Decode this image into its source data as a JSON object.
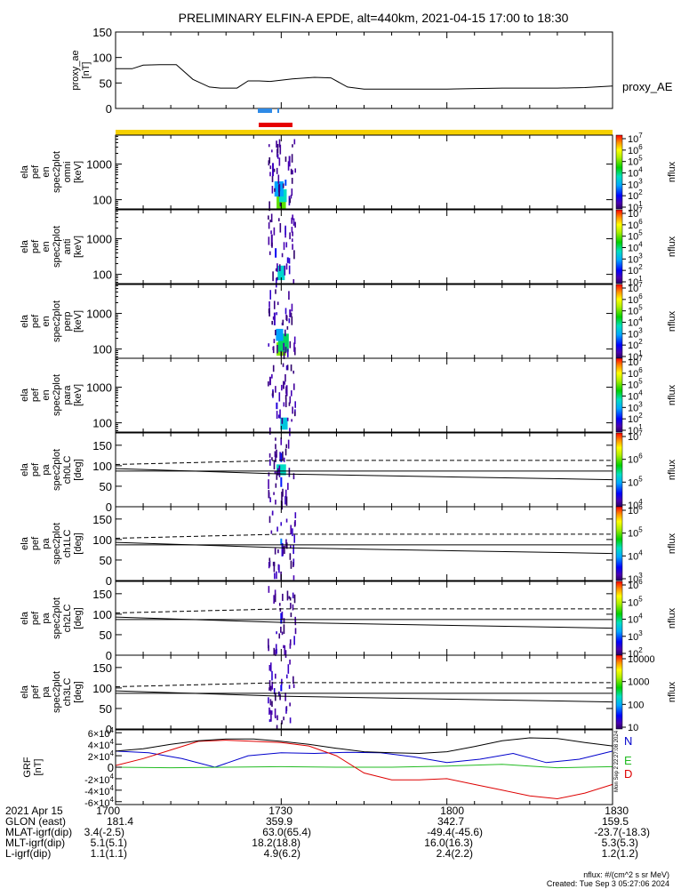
{
  "title": "PRELIMINARY ELFIN-A EPDE, alt=440km, 2021-04-15 17:00 to 18:30",
  "x_tick_labels": [
    "1700",
    "1730",
    "1800",
    "1830"
  ],
  "bottom_table": {
    "rows": [
      {
        "label": "2021 Apr 15",
        "values": [
          "1700",
          "1730",
          "1800",
          "1830"
        ]
      },
      {
        "label": "GLON (east)",
        "values": [
          "181.4",
          "359.9",
          "342.7",
          "159.5"
        ]
      },
      {
        "label": "MLAT-igrf(dip)",
        "values": [
          "3.4(-2.5)",
          "63.0(65.4)",
          "-49.4(-45.6)",
          "-23.7(-18.3)"
        ]
      },
      {
        "label": "MLT-igrf(dip)",
        "values": [
          "5.1(5.1)",
          "18.2(18.8)",
          "16.0(16.3)",
          "5.3(5.3)"
        ]
      },
      {
        "label": "L-igrf(dip)",
        "values": [
          "1.1(1.1)",
          "4.9(6.2)",
          "2.4(2.2)",
          "1.2(1.2)"
        ]
      }
    ]
  },
  "footer": {
    "units_note": "nflux: #/(cm^2 s sr MeV)",
    "created": "Created: Tue Sep  3 05:27:06 2024",
    "side_stamp": "Mon Sep  2 22:27:08 2024"
  },
  "colors": {
    "ae_line": "#000000",
    "ind_blue": "#2e8ae6",
    "ind_red": "#e60000",
    "yellow_bar": "#f5d000",
    "grf_n": "#0000cc",
    "grf_e": "#22bb22",
    "grf_d": "#dd0000",
    "grf_total": "#000000"
  },
  "chart_data": [
    {
      "type": "line",
      "panel": "proxy_ae",
      "ylabel": [
        "proxy_ae",
        "[nT]"
      ],
      "legend": "proxy_AE",
      "ylim": [
        0,
        150
      ],
      "yticks": [
        "0",
        "50",
        "100",
        "150"
      ],
      "xlim_min": [
        0,
        90
      ],
      "x": [
        0,
        3,
        5,
        8,
        11,
        14,
        17,
        19,
        22,
        24,
        26,
        28,
        32,
        36,
        39,
        42,
        45,
        50,
        55,
        60,
        65,
        70,
        75,
        80,
        85,
        90
      ],
      "y": [
        78,
        78,
        85,
        86,
        86,
        57,
        42,
        40,
        40,
        54,
        54,
        53,
        58,
        61,
        60,
        42,
        38,
        38,
        38,
        38,
        39,
        40,
        40,
        40,
        41,
        44
      ]
    },
    {
      "type": "heatmap",
      "panel": "omni",
      "ylabel": [
        "ela",
        "pef",
        "en",
        "spec2plot",
        "omni",
        "[keV]"
      ],
      "yscale": "log",
      "yticks": [
        "100",
        "1000"
      ],
      "zlabel": "nflux",
      "zlim": [
        1,
        7
      ],
      "zticks": [
        "10^1",
        "10^2",
        "10^3",
        "10^4",
        "10^5",
        "10^6",
        "10^7"
      ],
      "spots": [
        {
          "t": 30.0,
          "e": 90,
          "z": 4.8
        },
        {
          "t": 30.3,
          "e": 130,
          "z": 3.6
        },
        {
          "t": 29.6,
          "e": 200,
          "z": 2.9
        },
        {
          "t": 30.8,
          "e": 300,
          "z": 2.4
        },
        {
          "t": 28.5,
          "e": 700,
          "z": 1.6
        },
        {
          "t": 31.5,
          "e": 1200,
          "z": 1.5
        }
      ]
    },
    {
      "type": "heatmap",
      "panel": "anti",
      "ylabel": [
        "ela",
        "pef",
        "en",
        "spec2plot",
        "anti",
        "[keV]"
      ],
      "yscale": "log",
      "yticks": [
        "100",
        "1000"
      ],
      "zlabel": "nflux",
      "zlim": [
        1,
        7
      ],
      "zticks": [
        "10^1",
        "10^2",
        "10^3",
        "10^4",
        "10^5",
        "10^6",
        "10^7"
      ],
      "spots": [
        {
          "t": 30.0,
          "e": 110,
          "z": 3.5
        },
        {
          "t": 29.0,
          "e": 400,
          "z": 2.0
        },
        {
          "t": 31.2,
          "e": 250,
          "z": 1.8
        },
        {
          "t": 28.3,
          "e": 900,
          "z": 1.4
        }
      ]
    },
    {
      "type": "heatmap",
      "panel": "perp",
      "ylabel": [
        "ela",
        "pef",
        "en",
        "spec2plot",
        "perp",
        "[keV]"
      ],
      "yscale": "log",
      "yticks": [
        "100",
        "1000"
      ],
      "zlabel": "nflux",
      "zlim": [
        1,
        7
      ],
      "zticks": [
        "10^1",
        "10^2",
        "10^3",
        "10^4",
        "10^5",
        "10^6",
        "10^7"
      ],
      "spots": [
        {
          "t": 30.0,
          "e": 100,
          "z": 5.0
        },
        {
          "t": 30.4,
          "e": 150,
          "z": 4.0
        },
        {
          "t": 29.7,
          "e": 250,
          "z": 2.9
        },
        {
          "t": 28.8,
          "e": 700,
          "z": 1.6
        },
        {
          "t": 31.6,
          "e": 1000,
          "z": 1.5
        }
      ]
    },
    {
      "type": "heatmap",
      "panel": "para",
      "ylabel": [
        "ela",
        "pef",
        "en",
        "spec2plot",
        "para",
        "[keV]"
      ],
      "yscale": "log",
      "yticks": [
        "100",
        "1000"
      ],
      "zlabel": "nflux",
      "zlim": [
        1,
        7
      ],
      "zticks": [
        "10^1",
        "10^2",
        "10^3",
        "10^4",
        "10^5",
        "10^6",
        "10^7"
      ],
      "spots": [
        {
          "t": 30.5,
          "e": 95,
          "z": 3.3
        },
        {
          "t": 29.2,
          "e": 300,
          "z": 1.8
        },
        {
          "t": 31.0,
          "e": 800,
          "z": 1.5
        },
        {
          "t": 28.0,
          "e": 1500,
          "z": 1.4
        }
      ]
    },
    {
      "type": "heatmap",
      "panel": "ch0LC",
      "ylabel": [
        "ela",
        "pef",
        "pa",
        "spec2plot",
        "ch0LC",
        "[deg]"
      ],
      "ylim": [
        0,
        180
      ],
      "yticks": [
        "0",
        "50",
        "100",
        "150"
      ],
      "zlabel": "nflux",
      "zlim": [
        4,
        7
      ],
      "zticks": [
        "10^4",
        "10^5",
        "10^6",
        "10^7"
      ],
      "lc_line": [
        [
          0,
          93
        ],
        [
          30,
          80
        ],
        [
          90,
          66
        ]
      ],
      "dashed_line": [
        [
          0,
          103
        ],
        [
          30,
          113
        ],
        [
          90,
          113
        ]
      ],
      "solid_line": [
        [
          0,
          87
        ],
        [
          90,
          87
        ]
      ],
      "spots": [
        {
          "t": 30.0,
          "pa": 90,
          "z": 5.3
        },
        {
          "t": 30.0,
          "pa": 60,
          "z": 4.6
        },
        {
          "t": 30.0,
          "pa": 120,
          "z": 4.6
        }
      ]
    },
    {
      "type": "heatmap",
      "panel": "ch1LC",
      "ylabel": [
        "ela",
        "pef",
        "pa",
        "spec2plot",
        "ch1LC",
        "[deg]"
      ],
      "ylim": [
        0,
        180
      ],
      "yticks": [
        "0",
        "50",
        "100",
        "150"
      ],
      "zlabel": "nflux",
      "zlim": [
        3,
        6.5
      ],
      "zticks": [
        "10^3",
        "10^4",
        "10^5",
        "10^6"
      ],
      "lc_line": [
        [
          0,
          93
        ],
        [
          30,
          80
        ],
        [
          90,
          66
        ]
      ],
      "dashed_line": [
        [
          0,
          103
        ],
        [
          30,
          113
        ],
        [
          90,
          113
        ]
      ],
      "solid_line": [
        [
          0,
          87
        ],
        [
          90,
          87
        ]
      ],
      "spots": [
        {
          "t": 30.0,
          "pa": 95,
          "z": 4.0
        },
        {
          "t": 30.2,
          "pa": 75,
          "z": 3.5
        }
      ]
    },
    {
      "type": "heatmap",
      "panel": "ch2LC",
      "ylabel": [
        "ela",
        "pef",
        "pa",
        "spec2plot",
        "ch2LC",
        "[deg]"
      ],
      "ylim": [
        0,
        180
      ],
      "yticks": [
        "0",
        "50",
        "100",
        "150"
      ],
      "zlabel": "nflux",
      "zlim": [
        2,
        6.5
      ],
      "zticks": [
        "10^2",
        "10^3",
        "10^4",
        "10^5",
        "10^6"
      ],
      "lc_line": [
        [
          0,
          93
        ],
        [
          30,
          80
        ],
        [
          90,
          66
        ]
      ],
      "dashed_line": [
        [
          0,
          103
        ],
        [
          30,
          113
        ],
        [
          90,
          113
        ]
      ],
      "solid_line": [
        [
          0,
          87
        ],
        [
          90,
          87
        ]
      ],
      "spots": [
        {
          "t": 30.0,
          "pa": 90,
          "z": 2.8
        }
      ]
    },
    {
      "type": "heatmap",
      "panel": "ch3LC",
      "ylabel": [
        "ela",
        "pef",
        "pa",
        "spec2plot",
        "ch3LC",
        "[deg]"
      ],
      "ylim": [
        0,
        180
      ],
      "yticks": [
        "0",
        "50",
        "100",
        "150"
      ],
      "zlabel": "nflux",
      "zlim": [
        1,
        4
      ],
      "zticks": [
        "10",
        "100",
        "1000",
        "10000"
      ],
      "lc_line": [
        [
          0,
          93
        ],
        [
          30,
          80
        ],
        [
          90,
          66
        ]
      ],
      "dashed_line": [
        [
          0,
          103
        ],
        [
          30,
          113
        ],
        [
          90,
          113
        ]
      ],
      "solid_line": [
        [
          0,
          87
        ],
        [
          90,
          87
        ]
      ],
      "spots": [
        {
          "t": 30.0,
          "pa": 100,
          "z": 1.5
        }
      ]
    },
    {
      "type": "line",
      "panel": "GRF",
      "ylabel": [
        "GRF",
        "[nT]"
      ],
      "ylim": [
        -65000,
        65000
      ],
      "yticks": [
        "-6x10^4",
        "-4x10^4",
        "-2x10^4",
        "0",
        "2x10^4",
        "4x10^4",
        "6x10^4"
      ],
      "legend": [
        "N",
        "E",
        "D"
      ],
      "series": [
        {
          "name": "N",
          "x": [
            0,
            6,
            12,
            18,
            24,
            30,
            36,
            42,
            48,
            54,
            60,
            66,
            72,
            78,
            84,
            90
          ],
          "y": [
            28000,
            25000,
            15000,
            0,
            20000,
            25000,
            24000,
            26000,
            25000,
            18000,
            8000,
            14000,
            24000,
            8000,
            14000,
            28000
          ]
        },
        {
          "name": "E",
          "x": [
            0,
            10,
            20,
            30,
            40,
            50,
            60,
            70,
            75,
            80,
            85,
            90
          ],
          "y": [
            0,
            -1000,
            0,
            1000,
            0,
            0,
            2000,
            5000,
            2000,
            -1000,
            0,
            1000
          ]
        },
        {
          "name": "D",
          "x": [
            0,
            5,
            10,
            15,
            20,
            25,
            30,
            35,
            40,
            45,
            50,
            55,
            60,
            65,
            70,
            75,
            80,
            85,
            90
          ],
          "y": [
            3000,
            15000,
            30000,
            45000,
            47000,
            45000,
            43000,
            37000,
            20000,
            -10000,
            -22000,
            -22000,
            -20000,
            -30000,
            -40000,
            -50000,
            -55000,
            -45000,
            -30000
          ]
        },
        {
          "name": "total",
          "x": [
            0,
            5,
            10,
            15,
            20,
            25,
            30,
            35,
            40,
            45,
            50,
            55,
            60,
            65,
            70,
            75,
            80,
            85,
            90
          ],
          "y": [
            28000,
            32000,
            40000,
            46000,
            49000,
            49000,
            45000,
            40000,
            33000,
            27000,
            25000,
            24000,
            27000,
            36000,
            46000,
            51000,
            50000,
            43000,
            37000
          ]
        }
      ]
    }
  ]
}
